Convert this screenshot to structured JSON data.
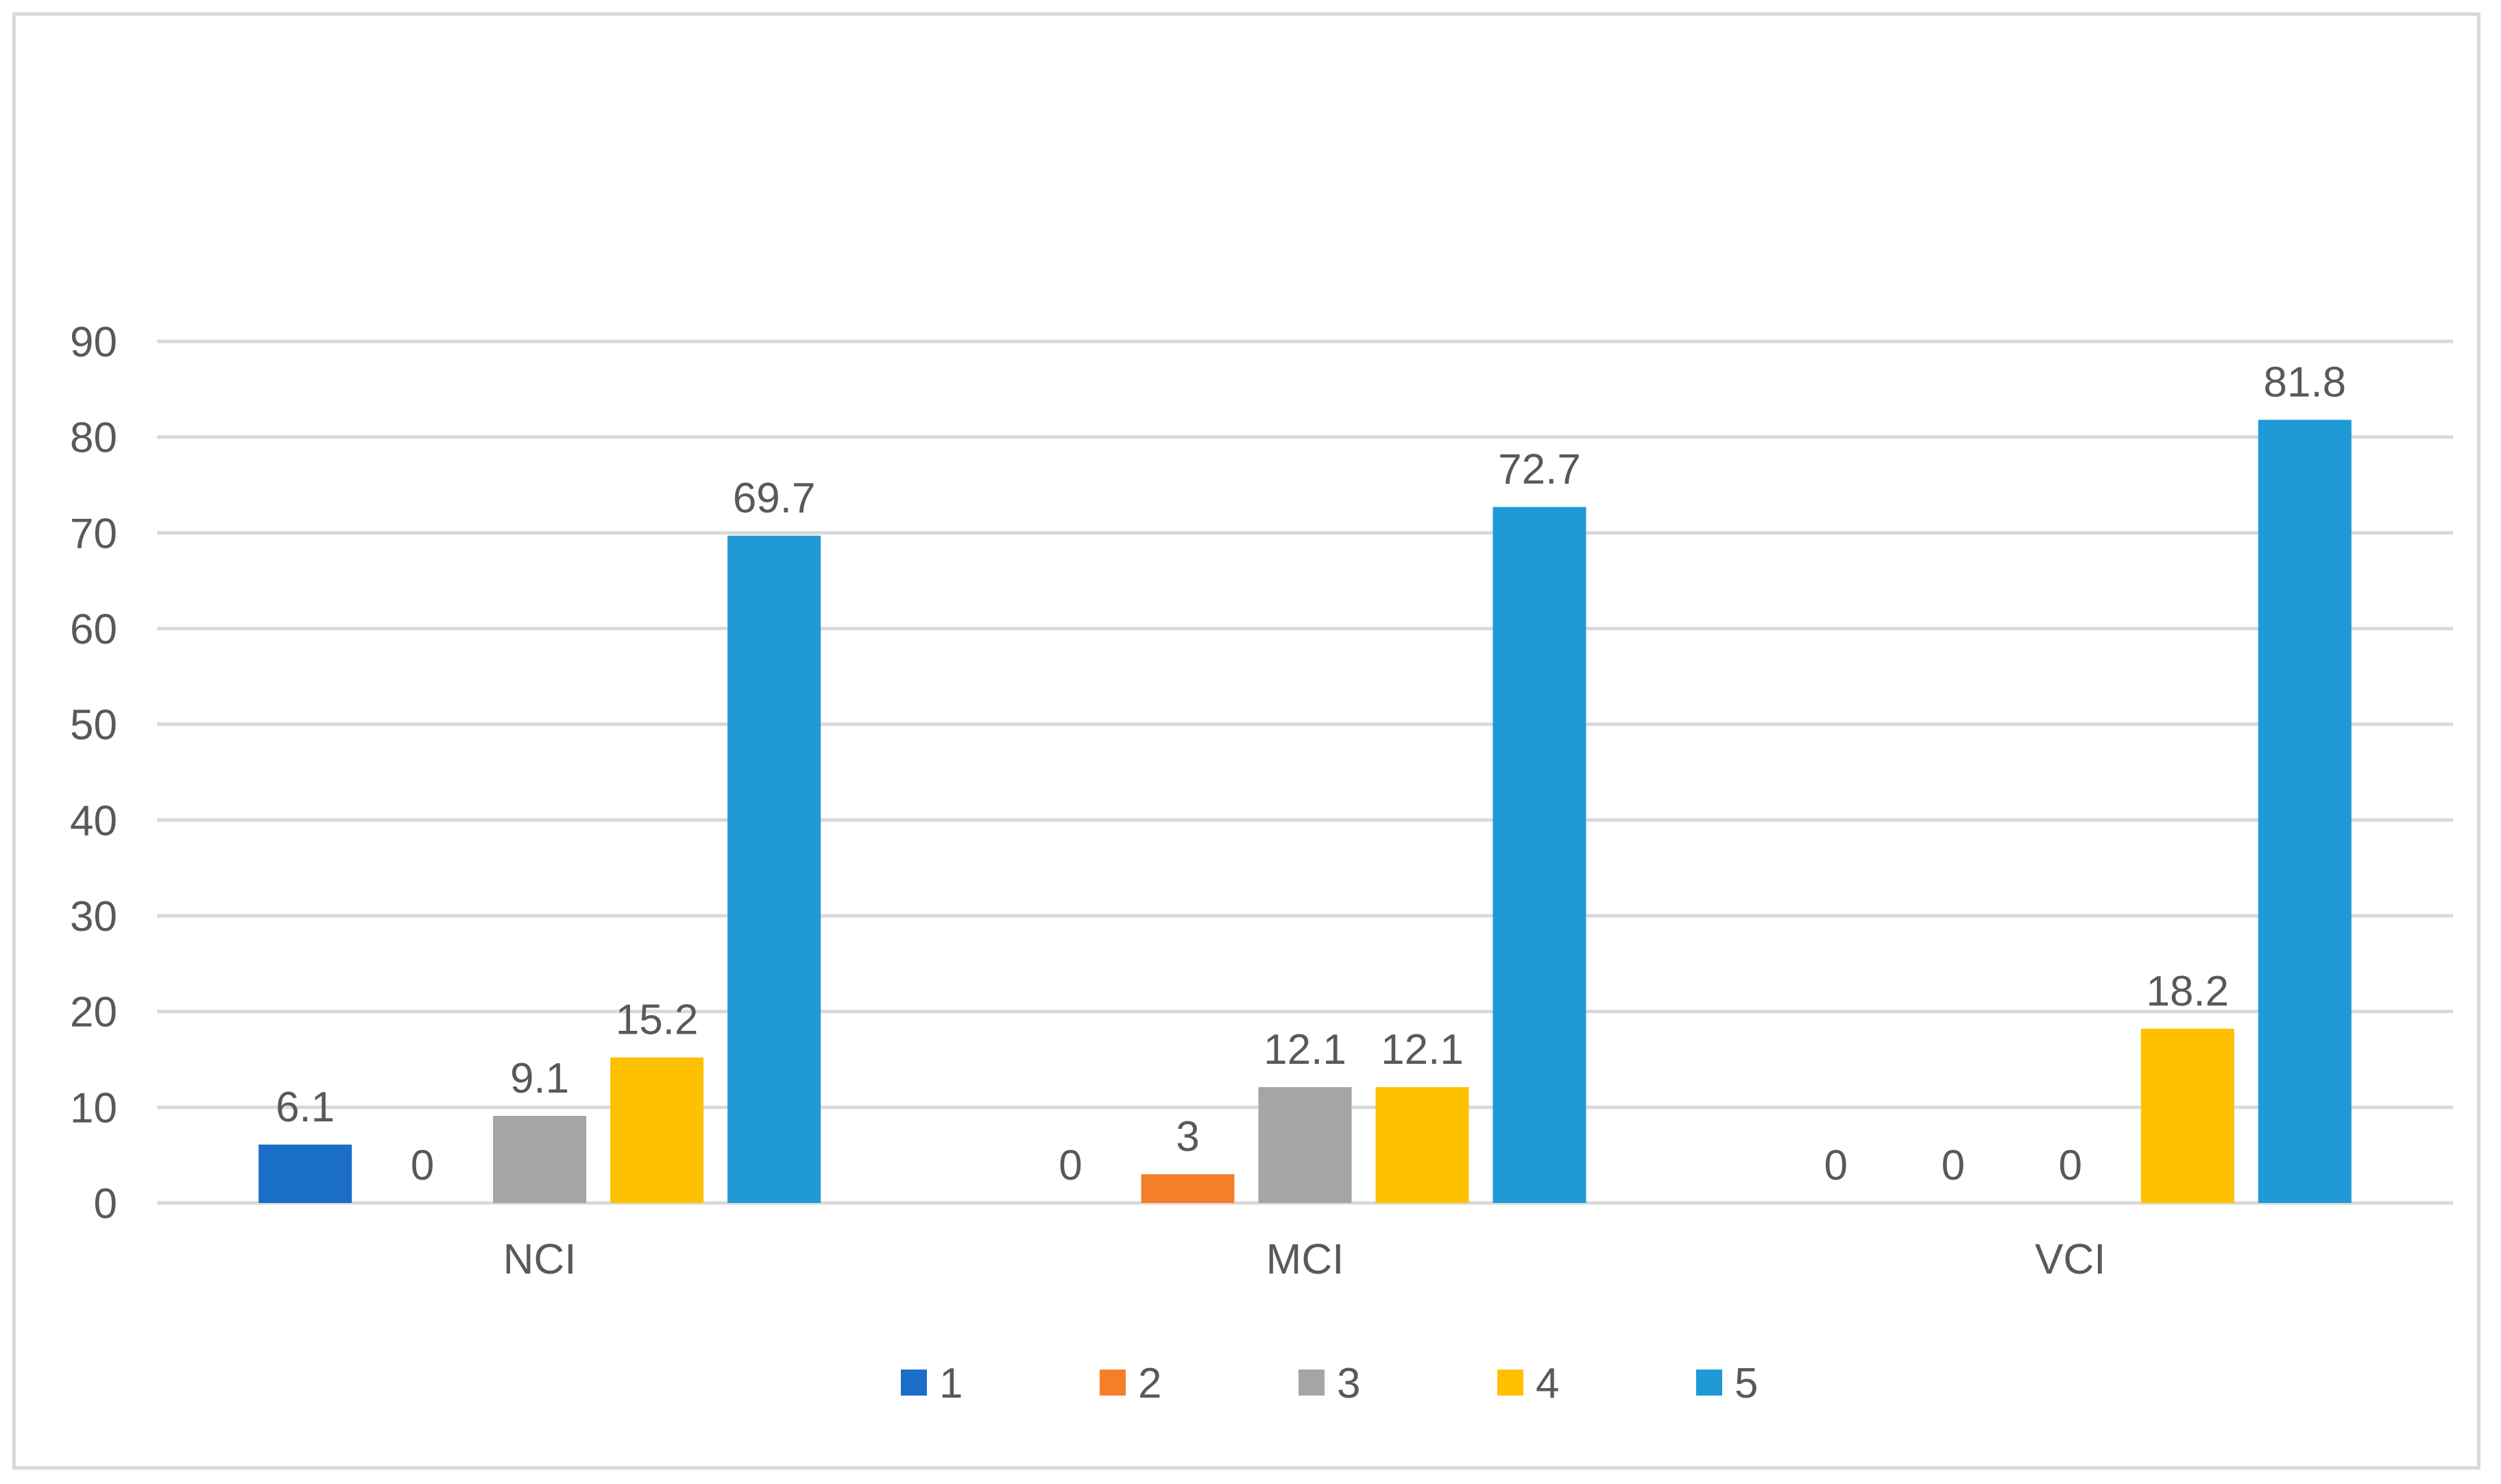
{
  "chart_data": {
    "type": "bar",
    "title": "",
    "xlabel": "",
    "ylabel": "",
    "categories": [
      "NCI",
      "MCI",
      "VCI"
    ],
    "series": [
      {
        "name": "1",
        "color": "#1a6ec7",
        "values": [
          6.1,
          0,
          0
        ]
      },
      {
        "name": "2",
        "color": "#f47f29",
        "values": [
          0,
          3,
          0
        ]
      },
      {
        "name": "3",
        "color": "#a5a5a5",
        "values": [
          9.1,
          12.1,
          0
        ]
      },
      {
        "name": "4",
        "color": "#ffc000",
        "values": [
          15.2,
          12.1,
          18.2
        ]
      },
      {
        "name": "5",
        "color": "#1f9ad6",
        "values": [
          69.7,
          72.7,
          81.8
        ]
      }
    ],
    "ylim": [
      0,
      90
    ],
    "yticks": [
      0,
      10,
      20,
      30,
      40,
      50,
      60,
      70,
      80,
      90
    ],
    "grid": true,
    "legend_position": "bottom",
    "data_labels": true
  }
}
